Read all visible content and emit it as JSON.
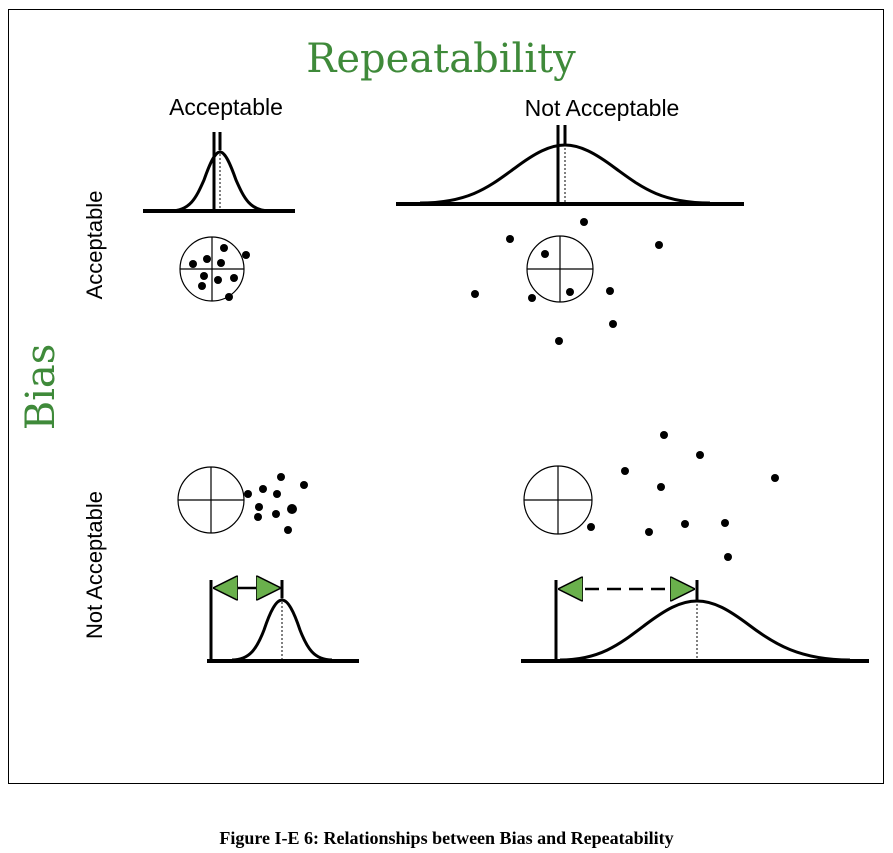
{
  "diagram": {
    "title": "Repeatability",
    "col_labels": {
      "left": "Acceptable",
      "right": "Not Acceptable"
    },
    "row_labels": {
      "top": "Acceptable",
      "bottom": "Not Acceptable"
    },
    "axis_label": "Bias",
    "caption": "Figure I-E 6:  Relationships between Bias and Repeatability",
    "colors": {
      "title": "#3f8a3a",
      "arrow": "#6ab04c",
      "ink": "#000000"
    }
  }
}
